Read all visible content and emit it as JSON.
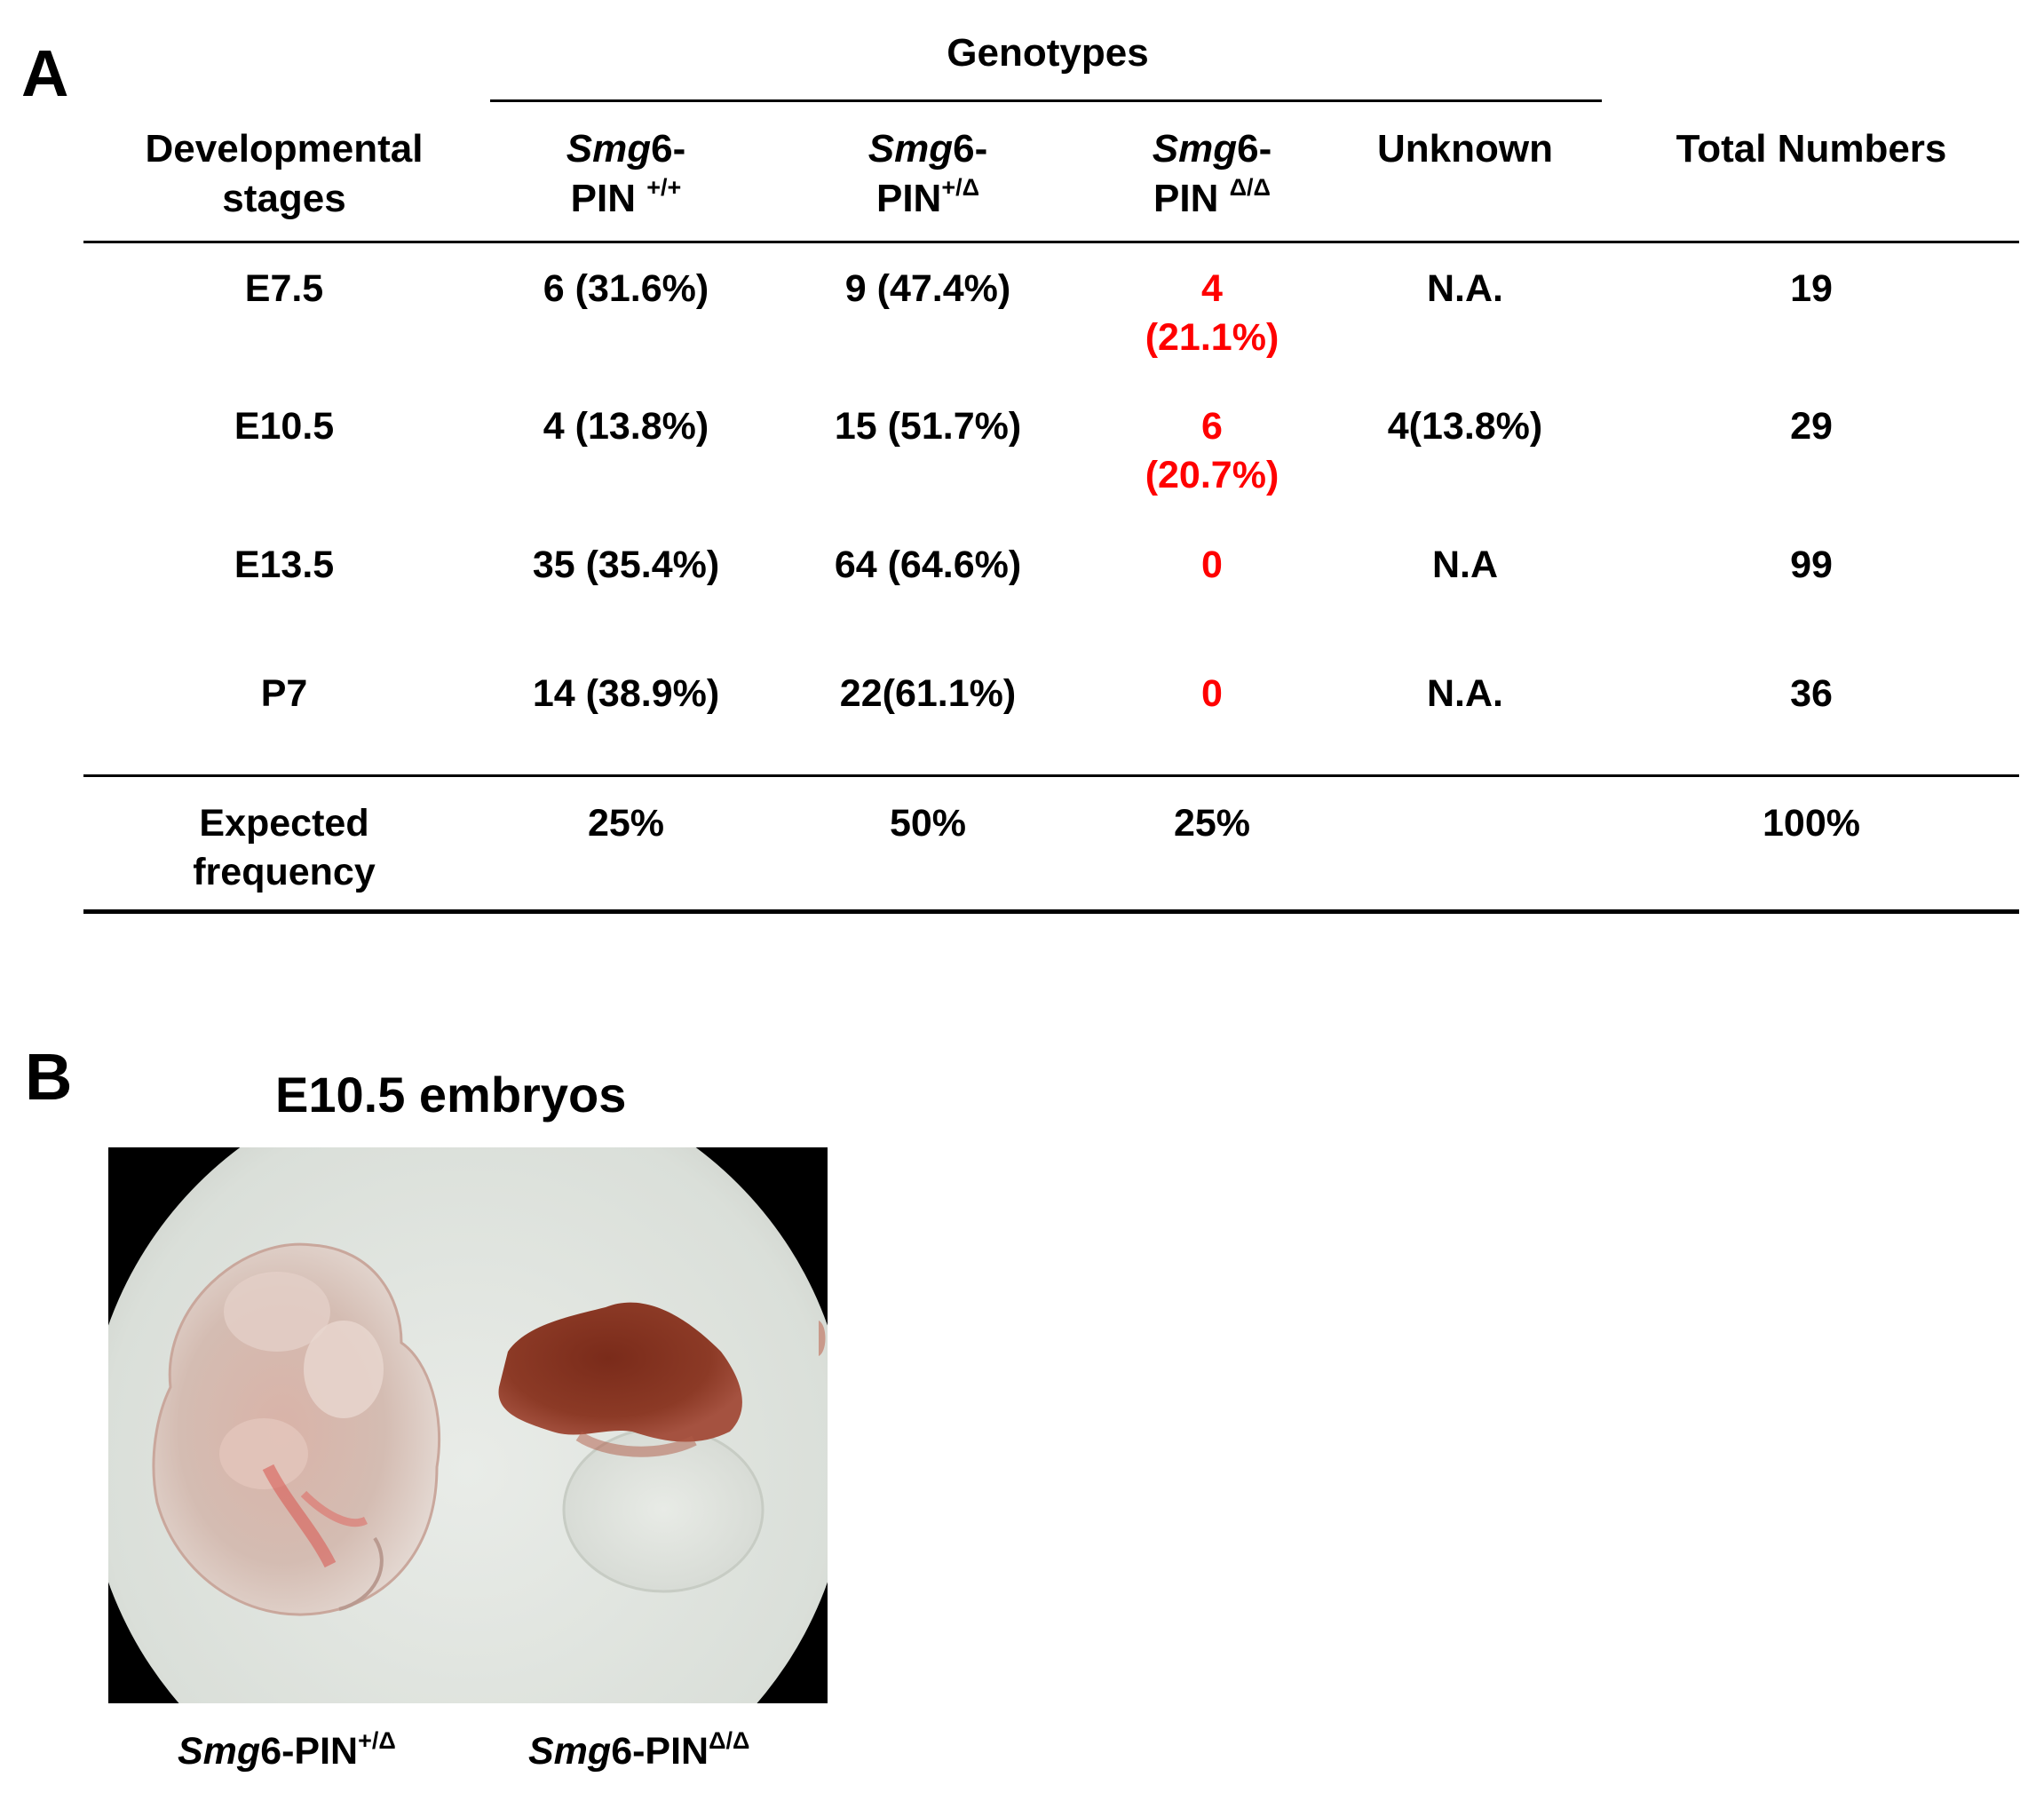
{
  "panel_a": {
    "letter": "A",
    "genotypes_header": "Genotypes",
    "columns": {
      "stage": "Developmental stages",
      "wt_prefix": "Smg",
      "wt_mid": "6-",
      "wt_pin": "PIN",
      "wt_sup": "+/+",
      "het_prefix": "Smg",
      "het_mid": "6-",
      "het_pin": "PIN",
      "het_sup": "+/Δ",
      "ko_prefix": "Smg",
      "ko_mid": "6-",
      "ko_pin": "PIN",
      "ko_sup": "Δ/Δ",
      "unknown": "Unknown",
      "total": "Total Numbers"
    },
    "rows": [
      {
        "stage": "E7.5",
        "wt": "6 (31.6%)",
        "het": "9 (47.4%)",
        "ko_n": "4",
        "ko_pct": "(21.1%)",
        "unknown": "N.A.",
        "total": "19"
      },
      {
        "stage": "E10.5",
        "wt": "4 (13.8%)",
        "het": "15 (51.7%)",
        "ko_n": "6",
        "ko_pct": "(20.7%)",
        "unknown": "4(13.8%)",
        "total": "29"
      },
      {
        "stage": "E13.5",
        "wt": "35 (35.4%)",
        "het": "64 (64.6%)",
        "ko_n": "0",
        "unknown": "N.A",
        "total": "99"
      },
      {
        "stage": "P7",
        "wt": "14 (38.9%)",
        "het": "22(61.1%)",
        "ko_n": "0",
        "unknown": "N.A.",
        "total": "36"
      }
    ],
    "expected": {
      "line1": "Expected",
      "line2": "frequency",
      "wt": "25%",
      "het": "50%",
      "ko": "25%",
      "unknown": "",
      "total": "100%"
    }
  },
  "panel_b": {
    "letter": "B",
    "title": "E10.5 embryos",
    "left_caption_prefix": "Smg",
    "left_caption_mid": "6-PIN",
    "left_caption_sup": "+/Δ",
    "right_caption_prefix": "Smg",
    "right_caption_mid": "6-PIN",
    "right_caption_sup": "Δ/Δ"
  },
  "colors": {
    "highlight": "#ff0000",
    "text": "#000000"
  }
}
